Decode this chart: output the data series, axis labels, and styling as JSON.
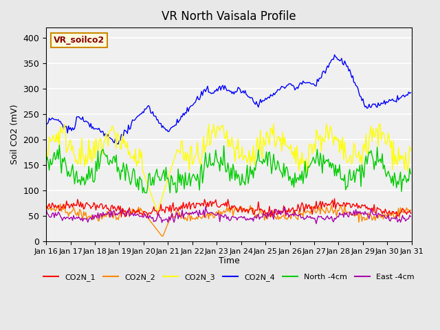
{
  "title": "VR North Vaisala Profile",
  "xlabel": "Time",
  "ylabel": "Soil CO2 (mV)",
  "annotation": "VR_soilco2",
  "ylim": [
    0,
    420
  ],
  "xlim": [
    0,
    360
  ],
  "yticks": [
    0,
    50,
    100,
    150,
    200,
    250,
    300,
    350,
    400
  ],
  "xtick_labels": [
    "Jan 16",
    "Jan 17",
    "Jan 18",
    "Jan 19",
    "Jan 20",
    "Jan 21",
    "Jan 22",
    "Jan 23",
    "Jan 24",
    "Jan 25",
    "Jan 26",
    "Jan 27",
    "Jan 28",
    "Jan 29",
    "Jan 30",
    "Jan 31"
  ],
  "bg_color": "#e8e8e8",
  "plot_bg": "#f0f0f0",
  "legend_entries": [
    "CO2N_1",
    "CO2N_2",
    "CO2N_3",
    "CO2N_4",
    "North -4cm",
    "East -4cm"
  ],
  "colors": {
    "CO2N_1": "#ff0000",
    "CO2N_2": "#ff8800",
    "CO2N_3": "#ffff00",
    "CO2N_4": "#0000ff",
    "North -4cm": "#00cc00",
    "East -4cm": "#aa00aa"
  },
  "n_points": 360
}
